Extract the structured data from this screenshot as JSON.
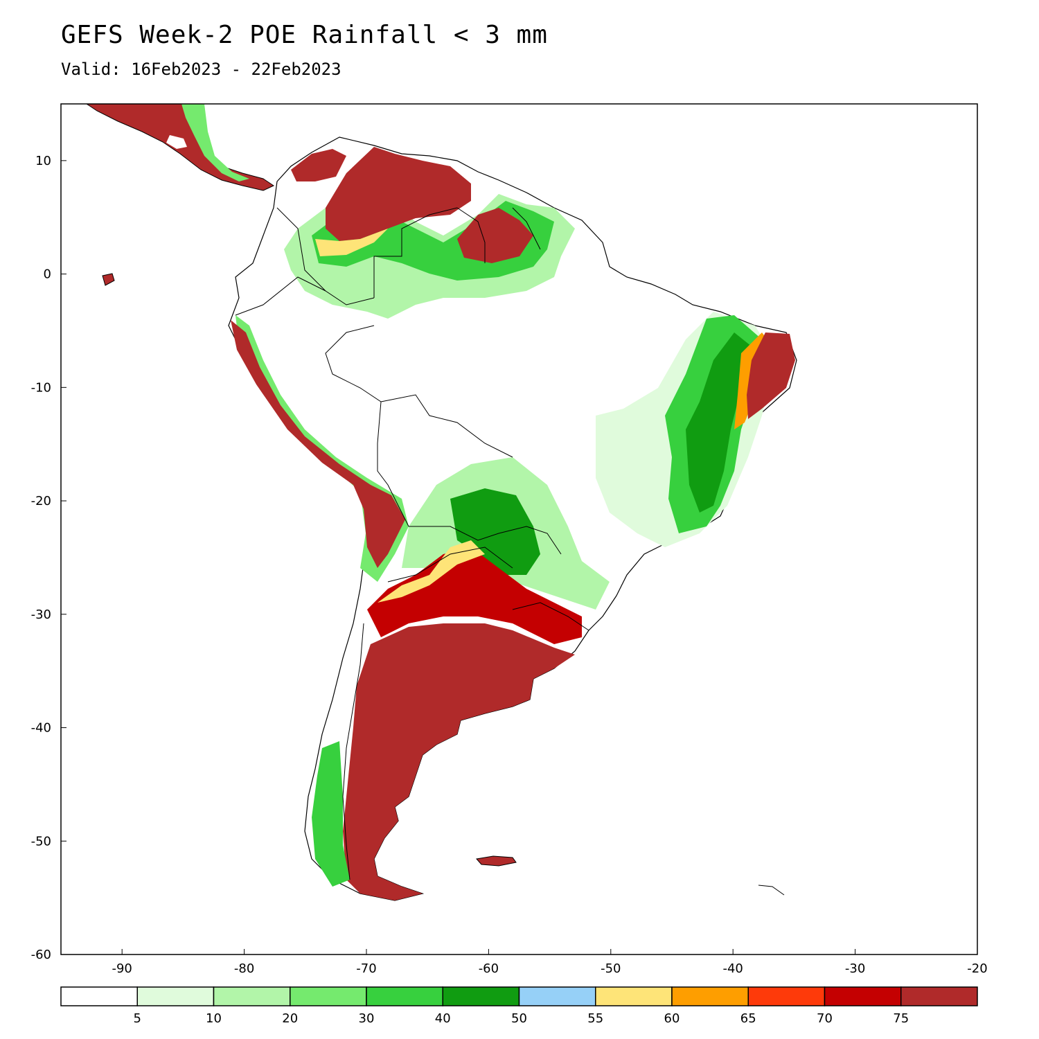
{
  "title": "GEFS Week-2 POE Rainfall < 3 mm",
  "subtitle": "Valid: 16Feb2023 - 22Feb2023",
  "map": {
    "lon_range": [
      -95,
      -20
    ],
    "lat_range": [
      -60,
      15
    ],
    "lon_ticks": [
      -90,
      -80,
      -70,
      -60,
      -50,
      -40,
      -30,
      -20
    ],
    "lat_ticks": [
      10,
      0,
      -10,
      -20,
      -30,
      -40,
      -50,
      -60
    ],
    "lon_tick_labels": [
      "-90",
      "-80",
      "-70",
      "-60",
      "-50",
      "-40",
      "-30",
      "-20"
    ],
    "lat_tick_labels": [
      "10",
      "0",
      "-10",
      "-20",
      "-30",
      "-40",
      "-50",
      "-60"
    ]
  },
  "colorbar": {
    "colors": [
      "#ffffff",
      "#e0fbdc",
      "#b2f5a9",
      "#75ea6e",
      "#37d03e",
      "#109c11",
      "#96d0f7",
      "#fee478",
      "#fe9e00",
      "#fe3a0a",
      "#c40001",
      "#b02a2a"
    ],
    "labels": [
      "5",
      "10",
      "20",
      "30",
      "40",
      "50",
      "55",
      "60",
      "65",
      "70",
      "75"
    ]
  },
  "legend_colors": {
    "very_high": "#b02a2a",
    "high": "#c40001",
    "mid_green": "#37d03e",
    "light_green": "#e0fbdc"
  }
}
